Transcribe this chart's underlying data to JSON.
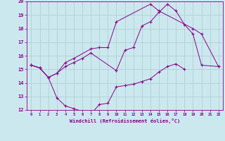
{
  "xlabel": "Windchill (Refroidissement éolien,°C)",
  "bg_color": "#cce8ef",
  "grid_color": "#aacccc",
  "line_color": "#880088",
  "xlim": [
    -0.5,
    22.5
  ],
  "ylim": [
    12,
    20
  ],
  "xticks": [
    0,
    1,
    2,
    3,
    4,
    5,
    6,
    7,
    8,
    9,
    10,
    11,
    12,
    13,
    14,
    15,
    16,
    17,
    18,
    19,
    20,
    21,
    22
  ],
  "yticks": [
    12,
    13,
    14,
    15,
    16,
    17,
    18,
    19,
    20
  ],
  "series_x": [
    [
      0,
      1,
      2,
      3,
      4,
      5,
      6,
      7,
      8,
      9,
      10,
      11,
      12,
      13,
      14,
      15,
      16,
      17,
      18
    ],
    [
      0,
      1,
      2,
      3,
      4,
      5,
      6,
      7,
      10,
      11,
      12,
      13,
      14,
      15,
      16,
      17,
      18,
      19,
      20,
      22
    ],
    [
      0,
      1,
      2,
      3,
      4,
      5,
      7,
      8,
      9,
      10,
      14,
      15,
      19,
      20,
      22
    ]
  ],
  "series_y": [
    [
      15.3,
      15.1,
      14.4,
      12.9,
      12.3,
      12.1,
      11.9,
      11.7,
      12.4,
      12.5,
      13.7,
      13.8,
      13.9,
      14.1,
      14.3,
      14.8,
      15.2,
      15.4,
      15.0
    ],
    [
      15.3,
      15.1,
      14.4,
      14.7,
      15.2,
      15.5,
      15.8,
      16.2,
      14.9,
      16.4,
      16.6,
      18.2,
      18.5,
      19.2,
      19.8,
      19.3,
      18.3,
      17.6,
      15.3,
      15.2
    ],
    [
      15.3,
      15.1,
      14.4,
      14.7,
      15.5,
      15.8,
      16.5,
      16.6,
      16.6,
      18.5,
      19.8,
      19.3,
      18.0,
      17.6,
      15.2
    ]
  ]
}
